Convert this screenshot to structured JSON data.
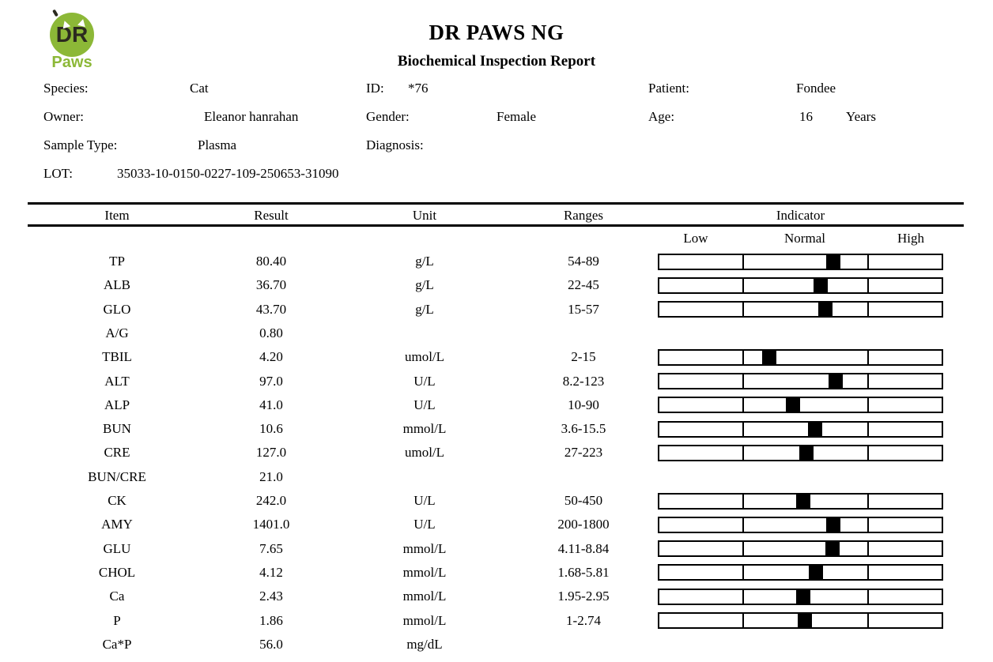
{
  "logo": {
    "monogram": "DR",
    "word": "Paws",
    "circle_color": "#8cb837",
    "monogram_color": "#2b2a1f",
    "word_color": "#8cb837"
  },
  "header": {
    "title": "DR PAWS NG",
    "subtitle": "Biochemical Inspection Report"
  },
  "patient_info": {
    "species": {
      "label": "Species:",
      "value": "Cat"
    },
    "id": {
      "label": "ID:",
      "value": "*76"
    },
    "patient": {
      "label": "Patient:",
      "value": "Fondee"
    },
    "owner": {
      "label": "Owner:",
      "value": "Eleanor hanrahan"
    },
    "gender": {
      "label": "Gender:",
      "value": "Female"
    },
    "age": {
      "label": "Age:",
      "value": "16",
      "unit": "Years"
    },
    "sample_type": {
      "label": "Sample Type:",
      "value": "Plasma"
    },
    "diagnosis": {
      "label": "Diagnosis:",
      "value": ""
    },
    "lot": {
      "label": "LOT:",
      "value": "35033-10-0150-0227-109-250653-31090"
    }
  },
  "table": {
    "columns": [
      "Item",
      "Result",
      "Unit",
      "Ranges",
      "Indicator"
    ],
    "indicator_labels": [
      "Low",
      "Normal",
      "High"
    ],
    "rows": [
      {
        "item": "TP",
        "result": "80.40",
        "unit": "g/L",
        "ranges": "54-89",
        "value": 80.4,
        "range_low": 54,
        "range_high": 89,
        "indicator": true
      },
      {
        "item": "ALB",
        "result": "36.70",
        "unit": "g/L",
        "ranges": "22-45",
        "value": 36.7,
        "range_low": 22,
        "range_high": 45,
        "indicator": true
      },
      {
        "item": "GLO",
        "result": "43.70",
        "unit": "g/L",
        "ranges": "15-57",
        "value": 43.7,
        "range_low": 15,
        "range_high": 57,
        "indicator": true
      },
      {
        "item": "A/G",
        "result": "0.80",
        "unit": "",
        "ranges": "",
        "indicator": false
      },
      {
        "item": "TBIL",
        "result": "4.20",
        "unit": "umol/L",
        "ranges": "2-15",
        "value": 4.2,
        "range_low": 2,
        "range_high": 15,
        "indicator": true
      },
      {
        "item": "ALT",
        "result": "97.0",
        "unit": "U/L",
        "ranges": "8.2-123",
        "value": 97.0,
        "range_low": 8.2,
        "range_high": 123,
        "indicator": true
      },
      {
        "item": "ALP",
        "result": "41.0",
        "unit": "U/L",
        "ranges": "10-90",
        "value": 41.0,
        "range_low": 10,
        "range_high": 90,
        "indicator": true
      },
      {
        "item": "BUN",
        "result": "10.6",
        "unit": "mmol/L",
        "ranges": "3.6-15.5",
        "value": 10.6,
        "range_low": 3.6,
        "range_high": 15.5,
        "indicator": true
      },
      {
        "item": "CRE",
        "result": "127.0",
        "unit": "umol/L",
        "ranges": "27-223",
        "value": 127.0,
        "range_low": 27,
        "range_high": 223,
        "indicator": true
      },
      {
        "item": "BUN/CRE",
        "result": "21.0",
        "unit": "",
        "ranges": "",
        "indicator": false
      },
      {
        "item": "CK",
        "result": "242.0",
        "unit": "U/L",
        "ranges": "50-450",
        "value": 242.0,
        "range_low": 50,
        "range_high": 450,
        "indicator": true
      },
      {
        "item": "AMY",
        "result": "1401.0",
        "unit": "U/L",
        "ranges": "200-1800",
        "value": 1401.0,
        "range_low": 200,
        "range_high": 1800,
        "indicator": true
      },
      {
        "item": "GLU",
        "result": "7.65",
        "unit": "mmol/L",
        "ranges": "4.11-8.84",
        "value": 7.65,
        "range_low": 4.11,
        "range_high": 8.84,
        "indicator": true
      },
      {
        "item": "CHOL",
        "result": "4.12",
        "unit": "mmol/L",
        "ranges": "1.68-5.81",
        "value": 4.12,
        "range_low": 1.68,
        "range_high": 5.81,
        "indicator": true
      },
      {
        "item": "Ca",
        "result": "2.43",
        "unit": "mmol/L",
        "ranges": "1.95-2.95",
        "value": 2.43,
        "range_low": 1.95,
        "range_high": 2.95,
        "indicator": true
      },
      {
        "item": "P",
        "result": "1.86",
        "unit": "mmol/L",
        "ranges": "1-2.74",
        "value": 1.86,
        "range_low": 1,
        "range_high": 2.74,
        "indicator": true
      },
      {
        "item": "Ca*P",
        "result": "56.0",
        "unit": "mg/dL",
        "ranges": "",
        "indicator": false
      }
    ]
  }
}
